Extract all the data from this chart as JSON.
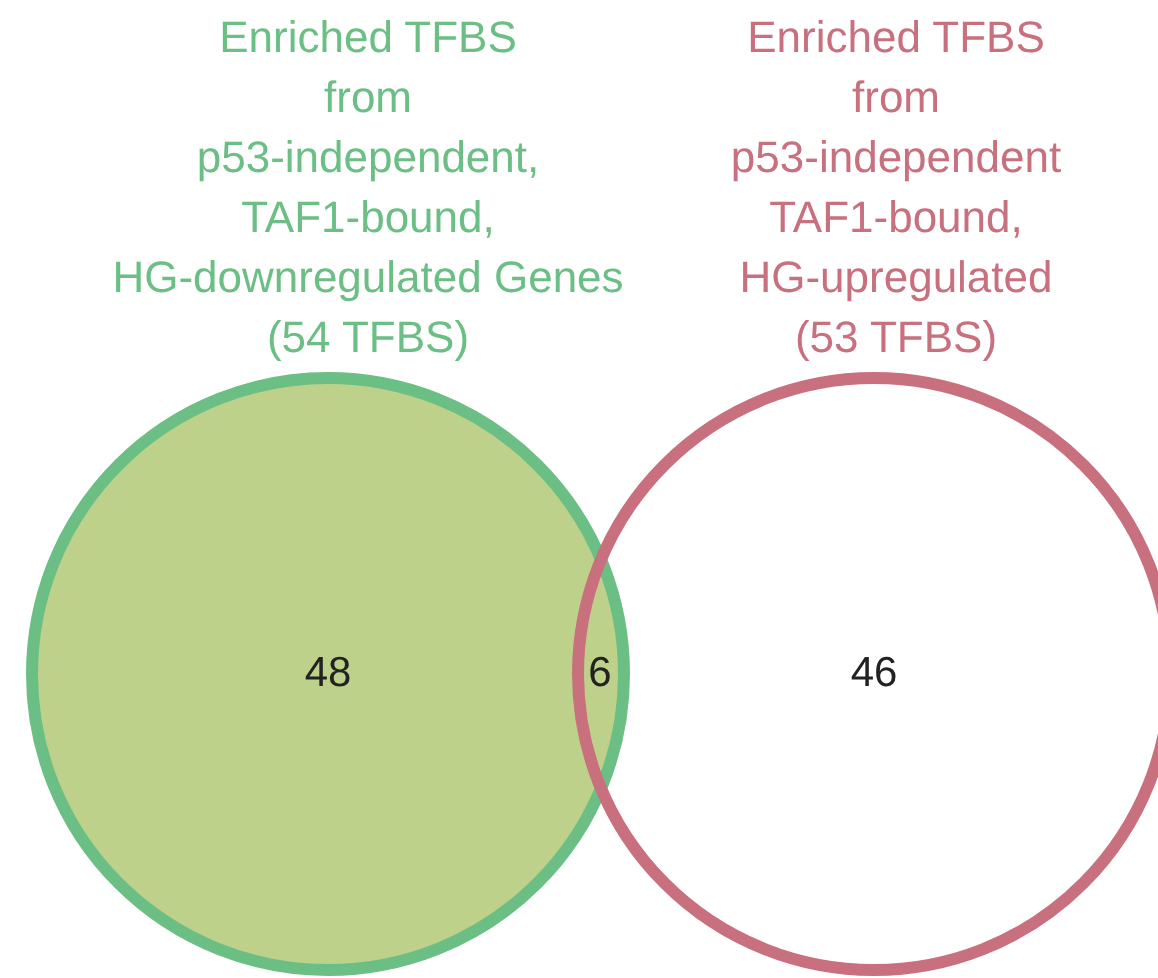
{
  "chart_data": {
    "type": "other",
    "categories": [
      null,
      null,
      null
    ],
    "values": [
      48,
      6,
      46
    ],
    "data_labels": true,
    "colors": [
      "#bdd18b",
      "#bdd18b",
      "#ffffff"
    ],
    "annotations": [
      "Enriched TFBS\nfrom\np53-independent,\nTAF1-bound,\nHG-downregulated Genes\n(54 TFBS)",
      "Enriched TFBS\nfrom\np53-independent\nTAF1-bound,\nHG-upregulated\n(53 TFBS)"
    ]
  }
}
